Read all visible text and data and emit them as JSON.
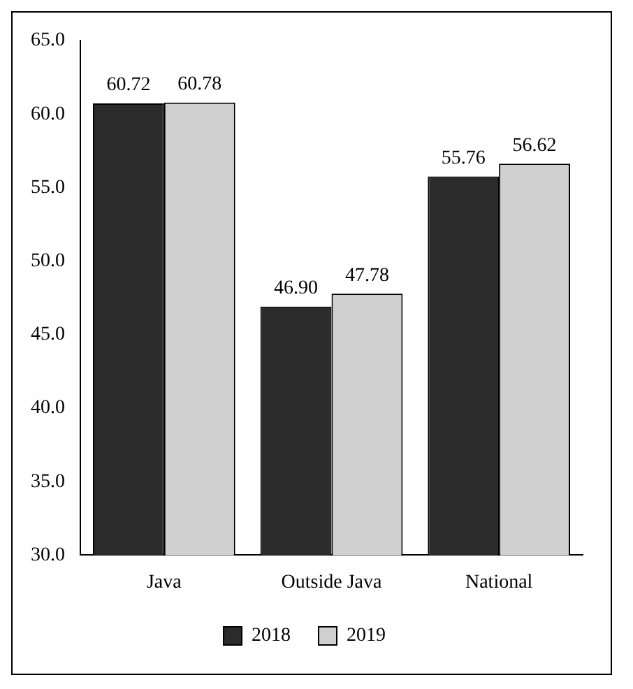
{
  "chart_data": {
    "type": "bar",
    "categories": [
      "Java",
      "Outside Java",
      "National"
    ],
    "series": [
      {
        "name": "2018",
        "color": "#2b2b2b",
        "values": [
          60.72,
          46.9,
          55.76
        ]
      },
      {
        "name": "2019",
        "color": "#d0d0d0",
        "values": [
          60.78,
          47.78,
          56.62
        ]
      }
    ],
    "value_labels": [
      [
        "60.72",
        "46.90",
        "55.76"
      ],
      [
        "60.78",
        "47.78",
        "56.62"
      ]
    ],
    "ylim": [
      30,
      65
    ],
    "yticks": [
      {
        "value": 30,
        "label": "30.0"
      },
      {
        "value": 35,
        "label": "35.0"
      },
      {
        "value": 40,
        "label": "40.0"
      },
      {
        "value": 45,
        "label": "45.0"
      },
      {
        "value": 50,
        "label": "50.0"
      },
      {
        "value": 55,
        "label": "55.0"
      },
      {
        "value": 60,
        "label": "60.0"
      },
      {
        "value": 65,
        "label": "65.0"
      }
    ],
    "grid": false,
    "legend": "bottom"
  }
}
